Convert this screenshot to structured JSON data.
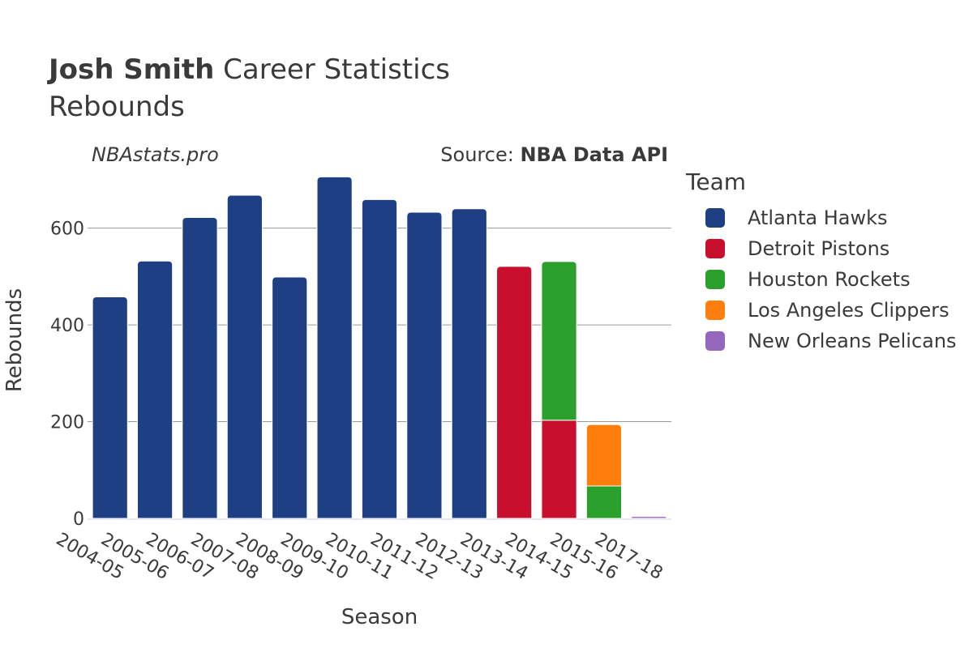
{
  "header": {
    "title_bold": "Josh Smith",
    "title_rest": " Career Statistics",
    "subtitle": "Rebounds",
    "credit": "NBAstats.pro",
    "source_prefix": "Source: ",
    "source_bold": "NBA Data API"
  },
  "legend": {
    "title": "Team",
    "items": [
      {
        "label": "Atlanta Hawks",
        "color": "#1f3f85"
      },
      {
        "label": "Detroit Pistons",
        "color": "#c8102e"
      },
      {
        "label": "Houston Rockets",
        "color": "#2ca02c"
      },
      {
        "label": "Los Angeles Clippers",
        "color": "#ff7f0e"
      },
      {
        "label": "New Orleans Pelicans",
        "color": "#9467bd"
      }
    ]
  },
  "chart_data": {
    "type": "bar",
    "stacked": true,
    "xlabel": "Season",
    "ylabel": "Rebounds",
    "ylim": [
      0,
      720
    ],
    "yticks": [
      0,
      200,
      400,
      600
    ],
    "grid": true,
    "legend_position": "right",
    "categories": [
      "2004-05",
      "2005-06",
      "2006-07",
      "2007-08",
      "2008-09",
      "2009-10",
      "2010-11",
      "2011-12",
      "2012-13",
      "2013-14",
      "2014-15",
      "2015-16",
      "2017-18"
    ],
    "series": [
      {
        "name": "Atlanta Hawks",
        "color": "#1f3f85",
        "values": [
          458,
          532,
          622,
          668,
          499,
          706,
          659,
          633,
          640,
          0,
          0,
          0,
          0
        ]
      },
      {
        "name": "Detroit Pistons",
        "color": "#c8102e",
        "values": [
          0,
          0,
          0,
          0,
          0,
          0,
          0,
          0,
          0,
          521,
          203,
          0,
          0
        ]
      },
      {
        "name": "Houston Rockets",
        "color": "#2ca02c",
        "values": [
          0,
          0,
          0,
          0,
          0,
          0,
          0,
          0,
          0,
          0,
          328,
          67,
          0
        ]
      },
      {
        "name": "Los Angeles Clippers",
        "color": "#ff7f0e",
        "values": [
          0,
          0,
          0,
          0,
          0,
          0,
          0,
          0,
          0,
          0,
          0,
          127,
          0
        ]
      },
      {
        "name": "New Orleans Pelicans",
        "color": "#9467bd",
        "values": [
          0,
          0,
          0,
          0,
          0,
          0,
          0,
          0,
          0,
          0,
          0,
          0,
          4
        ]
      }
    ]
  }
}
